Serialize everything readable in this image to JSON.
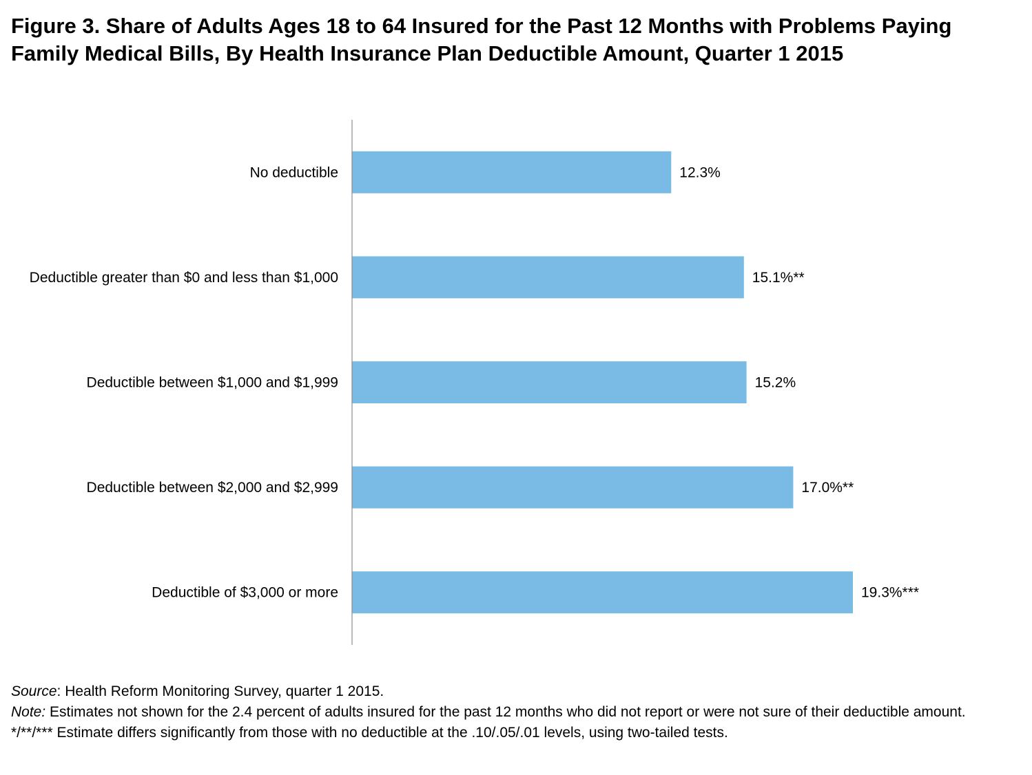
{
  "title": {
    "line1": "Figure 3. Share of Adults Ages 18 to 64 Insured for the Past 12 Months with Problems Paying",
    "line2": "Family Medical Bills, By Health Insurance Plan Deductible Amount, Quarter 1 2015"
  },
  "chart_data": {
    "type": "bar",
    "orientation": "horizontal",
    "categories": [
      "No deductible",
      "Deductible greater than $0 and less than $1,000",
      "Deductible between $1,000 and $1,999",
      "Deductible between $2,000 and $2,999",
      "Deductible of $3,000 or more"
    ],
    "values": [
      12.3,
      15.1,
      15.2,
      17.0,
      19.3
    ],
    "data_labels": [
      "12.3%",
      "15.1%**",
      "15.2%",
      "17.0%**",
      "19.3%***"
    ],
    "bar_color": "#79BBE5",
    "xlim": [
      0,
      23.6
    ],
    "grid": false,
    "legend": "none"
  },
  "footnotes": {
    "source_label": "Source",
    "source_text": ": Health Reform Monitoring Survey, quarter 1 2015.",
    "note_label": "Note:",
    "note_text": " Estimates not shown for the 2.4 percent of adults insured for the past 12 months who did not report or were not sure of their deductible amount.",
    "sig_label": "*/**/***",
    "sig_text": "  Estimate differs significantly from those with no deductible at the .10/.05/.01 levels, using two-tailed tests."
  }
}
